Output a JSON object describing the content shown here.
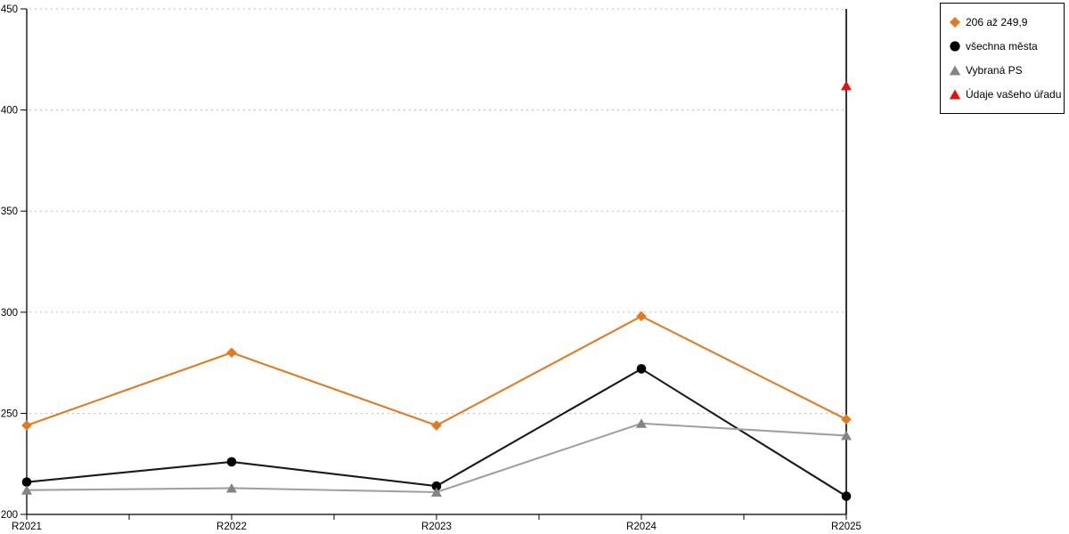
{
  "chart_data": {
    "type": "line",
    "title": "",
    "xlabel": "",
    "ylabel": "",
    "categories": [
      "R2021",
      "R2022",
      "R2023",
      "R2024",
      "R2025"
    ],
    "y_ticks": [
      200,
      250,
      300,
      350,
      400,
      450
    ],
    "ylim": [
      200,
      450
    ],
    "grid": "horizontal-dotted",
    "legend_position": "top-right",
    "highlight_category": "R2025",
    "series": [
      {
        "name": "206 až 249,9",
        "marker": "diamond",
        "line_color": "#E07B21",
        "marker_color": "#E07B21",
        "values": [
          244,
          280,
          244,
          298,
          247
        ]
      },
      {
        "name": "všechna města",
        "marker": "circle",
        "line_color": "#1A1A1A",
        "marker_color": "#000000",
        "values": [
          216,
          226,
          214,
          272,
          209
        ]
      },
      {
        "name": "Vybraná PS",
        "marker": "triangle",
        "line_color": "#A0A0A0",
        "marker_color": "#848484",
        "values": [
          212,
          213,
          211,
          245,
          239
        ]
      },
      {
        "name": "Údaje vašeho úřadu",
        "marker": "triangle",
        "line_color": "#ED0D0D",
        "marker_color": "#ED0D0D",
        "values": [
          null,
          null,
          null,
          null,
          412
        ]
      }
    ],
    "axis_color": "#000000",
    "gridline_color": "#BDBDBD",
    "tick_label_color": "#000000"
  }
}
